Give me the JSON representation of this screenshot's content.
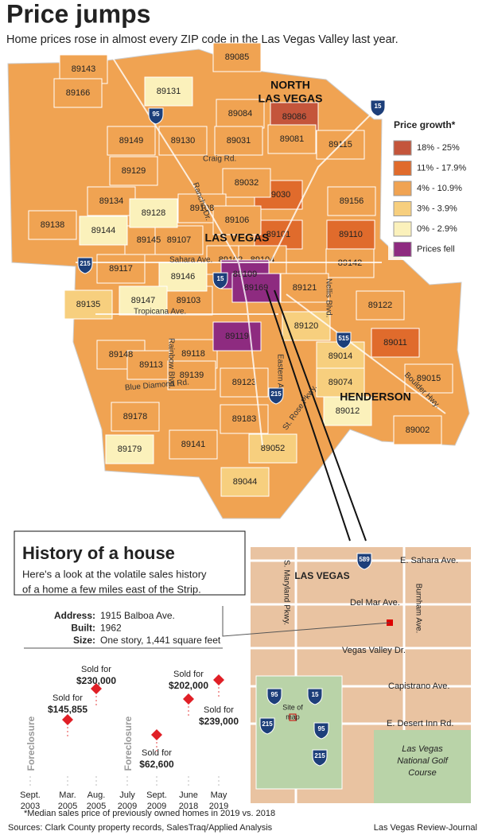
{
  "header": {
    "title": "Price jumps",
    "subtitle": "Home prices rose in almost every ZIP code in the Las Vegas Valley last year."
  },
  "legend": {
    "title": "Price growth*",
    "items": [
      {
        "label": "18% - 25%",
        "color": "#c4553b",
        "zips": [
          "89086"
        ]
      },
      {
        "label": "11% - 17.9%",
        "color": "#e06b2c",
        "zips": [
          "89030",
          "89101",
          "89110",
          "89011"
        ]
      },
      {
        "label": "4% - 10.9%",
        "color": "#f0a352",
        "zips": [
          "89143",
          "89166",
          "89085",
          "89084",
          "89149",
          "89130",
          "89031",
          "89081",
          "89115",
          "89129",
          "89032",
          "89156",
          "89134",
          "89108",
          "89138",
          "89106",
          "89145",
          "89107",
          "89102",
          "89104",
          "89142",
          "89117",
          "89121",
          "89122",
          "89103",
          "89148",
          "89113",
          "89118",
          "89139",
          "89123",
          "89015",
          "89178",
          "89183",
          "89141",
          "89002"
        ]
      },
      {
        "label": "3% - 3.9%",
        "color": "#f7cf7e",
        "zips": [
          "89135",
          "89120",
          "89014",
          "89074",
          "89052",
          "89044"
        ]
      },
      {
        "label": "0% - 2.9%",
        "color": "#fbf1bb",
        "zips": [
          "89131",
          "89128",
          "89144",
          "89146",
          "89147",
          "89012",
          "89179"
        ]
      },
      {
        "label": "Prices fell",
        "color": "#8e2b80",
        "zips": [
          "89109",
          "89169",
          "89119"
        ]
      }
    ]
  },
  "map": {
    "places": [
      "NORTH",
      "LAS VEGAS",
      "LAS VEGAS",
      "HENDERSON"
    ],
    "roads": [
      "Craig Rd.",
      "Rancho Dr.",
      "Sahara Ave.",
      "Tropicana Ave.",
      "Rainbow Blvd.",
      "Eastern Ave.",
      "Nellis Blvd.",
      "Blue Diamond Rd.",
      "St. Rose Pkwy.",
      "Boulder Hwy."
    ],
    "shields": [
      "15",
      "95",
      "215",
      "15",
      "515",
      "215"
    ]
  },
  "history": {
    "title": "History of a house",
    "description": [
      "Here's a look at the volatile sales history",
      "of a home a few miles east of the Strip."
    ],
    "details": [
      {
        "label": "Address:",
        "value": "1915 Balboa Ave."
      },
      {
        "label": "Built:",
        "value": "1962"
      },
      {
        "label": "Size:",
        "value": "One story, 1,441 square feet"
      }
    ],
    "events": [
      {
        "month": "Sept.",
        "year": "2003",
        "note": "Foreclosure"
      },
      {
        "month": "Mar.",
        "year": "2005",
        "sold": "Sold for",
        "price": "$145,855"
      },
      {
        "month": "Aug.",
        "year": "2005",
        "sold": "Sold for",
        "price": "$230,000"
      },
      {
        "month": "July",
        "year": "2009",
        "note": "Foreclosure"
      },
      {
        "month": "Sept.",
        "year": "2009",
        "sold": "Sold for",
        "price": "$62,600"
      },
      {
        "month": "June",
        "year": "2018",
        "sold": "Sold for",
        "price": "$202,000"
      },
      {
        "month": "May",
        "year": "2019",
        "sold": "Sold for",
        "price": "$239,000"
      }
    ]
  },
  "inset_map": {
    "labels": [
      "E. Sahara Ave.",
      "S. Maryland Pkwy.",
      "LAS VEGAS",
      "Del Mar Ave.",
      "Burnham Ave.",
      "Vegas Valley Dr.",
      "Capistrano Ave.",
      "E. Desert Inn Rd.",
      "Las Vegas",
      "National Golf",
      "Course",
      "Site of",
      "map"
    ],
    "shields": [
      "589",
      "95",
      "15",
      "215",
      "95",
      "215"
    ]
  },
  "footer": {
    "note": "*Median sales price of previously owned homes in 2019 vs. 2018",
    "sources": "Sources: Clark County property records, SalesTraq/Applied Analysis",
    "credit": "Las Vegas Review-Journal"
  }
}
